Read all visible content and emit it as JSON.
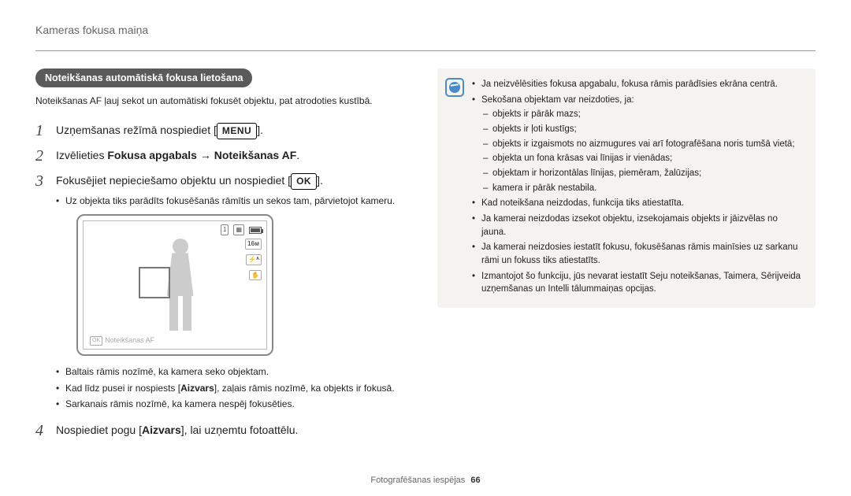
{
  "header": {
    "title": "Kameras fokusa maiņa"
  },
  "section": {
    "title": "Noteikšanas automātiskā fokusa lietošana",
    "intro": "Noteikšanas AF ļauj sekot un automātiski fokusēt objektu, pat atrodoties kustībā."
  },
  "steps": [
    {
      "num": "1",
      "prefix": "Uzņemšanas režīmā nospiediet [",
      "button": "MENU",
      "suffix": "]."
    },
    {
      "num": "2",
      "text_plain_a": "Izvēlieties ",
      "text_bold": "Fokusa apgabals → Noteikšanas AF",
      "text_plain_b": "."
    },
    {
      "num": "3",
      "prefix": "Fokusējiet nepieciešamo objektu un nospiediet [",
      "button": "OK",
      "suffix": "].",
      "bullets": [
        "Uz objekta tiks parādīts fokusēšanās rāmītis un sekos tam, pārvietojot kameru."
      ],
      "after_bullets": [
        "Baltais rāmis nozīmē, ka kamera seko objektam.",
        {
          "a": "Kad līdz pusei ir nospiests [",
          "bold": "Aizvars",
          "b": "], zaļais rāmis nozīmē, ka objekts ir fokusā."
        },
        "Sarkanais rāmis nozīmē, ka kamera nespēj fokusēties."
      ]
    },
    {
      "num": "4",
      "text_plain_a": "Nospiediet pogu [",
      "text_bold": "Aizvars",
      "text_plain_b": "], lai uzņemtu fotoattēlu."
    }
  ],
  "illustration": {
    "caption_button": "OK",
    "caption_text": "Noteikšanas AF",
    "icons": {
      "one": "1",
      "size": "16м",
      "flash": "⚡ᴬ",
      "touch": "✋"
    }
  },
  "notes": [
    "Ja neizvēlēsities fokusa apgabalu, fokusa rāmis parādīsies ekrāna centrā.",
    {
      "text": "Sekošana objektam var neizdoties, ja:",
      "sub": [
        "objekts ir pārāk mazs;",
        "objekts ir ļoti kustīgs;",
        "objekts ir izgaismots no aizmugures vai arī fotografēšana noris tumšā vietā;",
        "objekta un fona krāsas vai līnijas ir vienādas;",
        "objektam ir horizontālas līnijas, piemēram, žalūzijas;",
        "kamera ir pārāk nestabila."
      ]
    },
    "Kad noteikšana neizdodas, funkcija tiks atiestatīta.",
    "Ja kamerai neizdodas izsekot objektu, izsekojamais objekts ir jāizvēlas no jauna.",
    "Ja kamerai neizdosies iestatīt fokusu, fokusēšanas rāmis mainīsies uz sarkanu rāmi un fokuss tiks atiestatīts.",
    "Izmantojot šo funkciju, jūs nevarat iestatīt Seju noteikšanas, Taimera, Sērijveida uzņemšanas un Intelli tālummaiņas opcijas."
  ],
  "footer": {
    "label": "Fotografēšanas iespējas",
    "page": "66"
  },
  "colors": {
    "section_bg": "#5a5a5a",
    "note_bg": "#f4f3ef",
    "note_icon": "#4a8bcc",
    "text": "#222222",
    "muted": "#666666"
  }
}
